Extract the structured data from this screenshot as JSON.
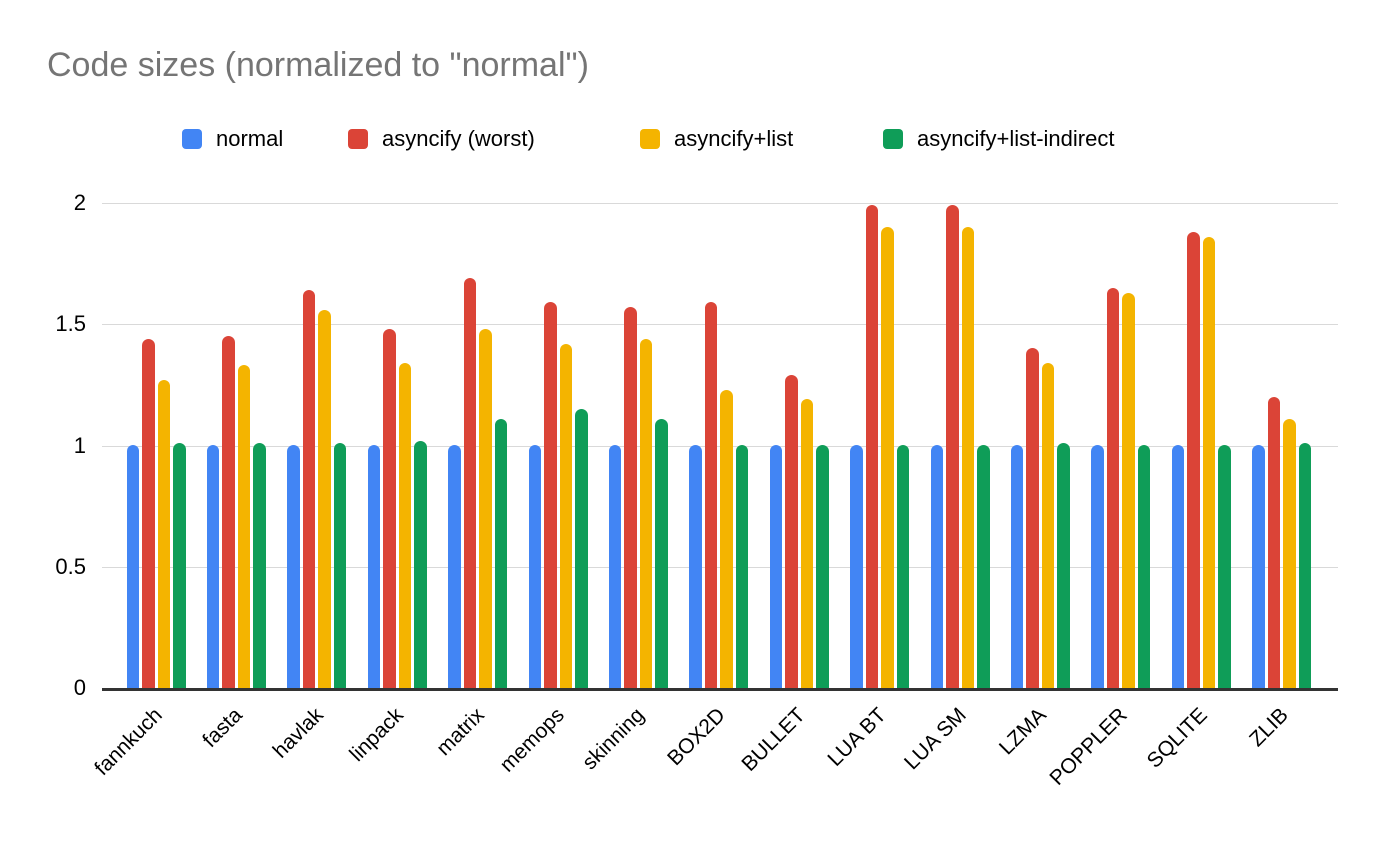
{
  "title": "Code sizes (normalized to \"normal\")",
  "colors": {
    "title_text": "#757575",
    "axis_text": "#000000",
    "gridline": "#d9d9d9",
    "baseline": "#333333",
    "background": "#ffffff"
  },
  "chart_data": {
    "type": "bar",
    "title": "Code sizes (normalized to \"normal\")",
    "xlabel": "",
    "ylabel": "",
    "ylim": [
      0,
      2
    ],
    "grid": true,
    "legend_position": "top",
    "categories": [
      "fannkuch",
      "fasta",
      "havlak",
      "linpack",
      "matrix",
      "memops",
      "skinning",
      "BOX2D",
      "BULLET",
      "LUA BT",
      "LUA SM",
      "LZMA",
      "POPPLER",
      "SQLITE",
      "ZLIB"
    ],
    "yticks": [
      {
        "value": 0,
        "label": "0"
      },
      {
        "value": 0.5,
        "label": "0.5"
      },
      {
        "value": 1,
        "label": "1"
      },
      {
        "value": 1.5,
        "label": "1.5"
      },
      {
        "value": 2,
        "label": "2"
      }
    ],
    "series": [
      {
        "name": "normal",
        "color": "#4285F4",
        "values": [
          1.0,
          1.0,
          1.0,
          1.0,
          1.0,
          1.0,
          1.0,
          1.0,
          1.0,
          1.0,
          1.0,
          1.0,
          1.0,
          1.0,
          1.0
        ]
      },
      {
        "name": "asyncify (worst)",
        "color": "#DB4437",
        "values": [
          1.44,
          1.45,
          1.64,
          1.48,
          1.69,
          1.59,
          1.57,
          1.59,
          1.29,
          1.99,
          1.99,
          1.4,
          1.65,
          1.88,
          1.2
        ]
      },
      {
        "name": "asyncify+list",
        "color": "#F4B400",
        "values": [
          1.27,
          1.33,
          1.56,
          1.34,
          1.48,
          1.42,
          1.44,
          1.23,
          1.19,
          1.9,
          1.9,
          1.34,
          1.63,
          1.86,
          1.11
        ]
      },
      {
        "name": "asyncify+list-indirect",
        "color": "#0F9D58",
        "values": [
          1.01,
          1.01,
          1.01,
          1.02,
          1.11,
          1.15,
          1.11,
          1.0,
          1.0,
          1.0,
          1.0,
          1.01,
          1.0,
          1.0,
          1.01
        ]
      }
    ]
  }
}
